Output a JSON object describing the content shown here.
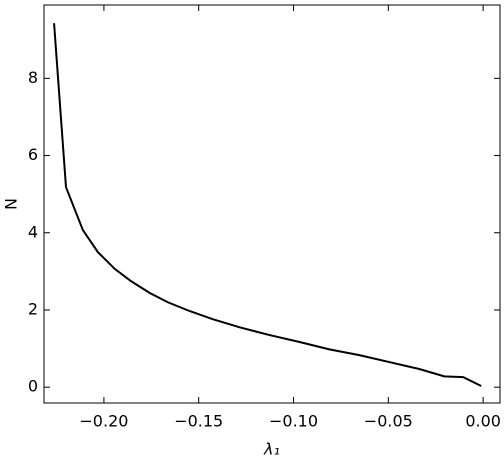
{
  "chart_data": {
    "type": "line",
    "x_label": "λ₁",
    "y_label": "N",
    "x": [
      -0.2263,
      -0.22,
      -0.2111,
      -0.2032,
      -0.1942,
      -0.1858,
      -0.1758,
      -0.1663,
      -0.1547,
      -0.1426,
      -0.1284,
      -0.1126,
      -0.0968,
      -0.0811,
      -0.0653,
      -0.0495,
      -0.0337,
      -0.0205,
      -0.0105,
      -0.001
    ],
    "series": [
      {
        "color": "#000000",
        "values": [
          9.43,
          5.18,
          4.07,
          3.5,
          3.06,
          2.75,
          2.44,
          2.2,
          1.97,
          1.76,
          1.55,
          1.35,
          1.17,
          0.98,
          0.83,
          0.65,
          0.47,
          0.28,
          0.26,
          0.03
        ]
      }
    ],
    "xlim": [
      -0.2316,
      0.0089
    ],
    "xticks": [
      {
        "value": -0.2,
        "label": "−0.20"
      },
      {
        "value": -0.15,
        "label": "−0.15"
      },
      {
        "value": -0.1,
        "label": "−0.10"
      },
      {
        "value": -0.05,
        "label": "−0.05"
      },
      {
        "value": 0,
        "label": "0.00"
      }
    ],
    "ylim": [
      -0.41,
      9.9
    ],
    "yticks": [
      0,
      2,
      4,
      6,
      8
    ]
  }
}
